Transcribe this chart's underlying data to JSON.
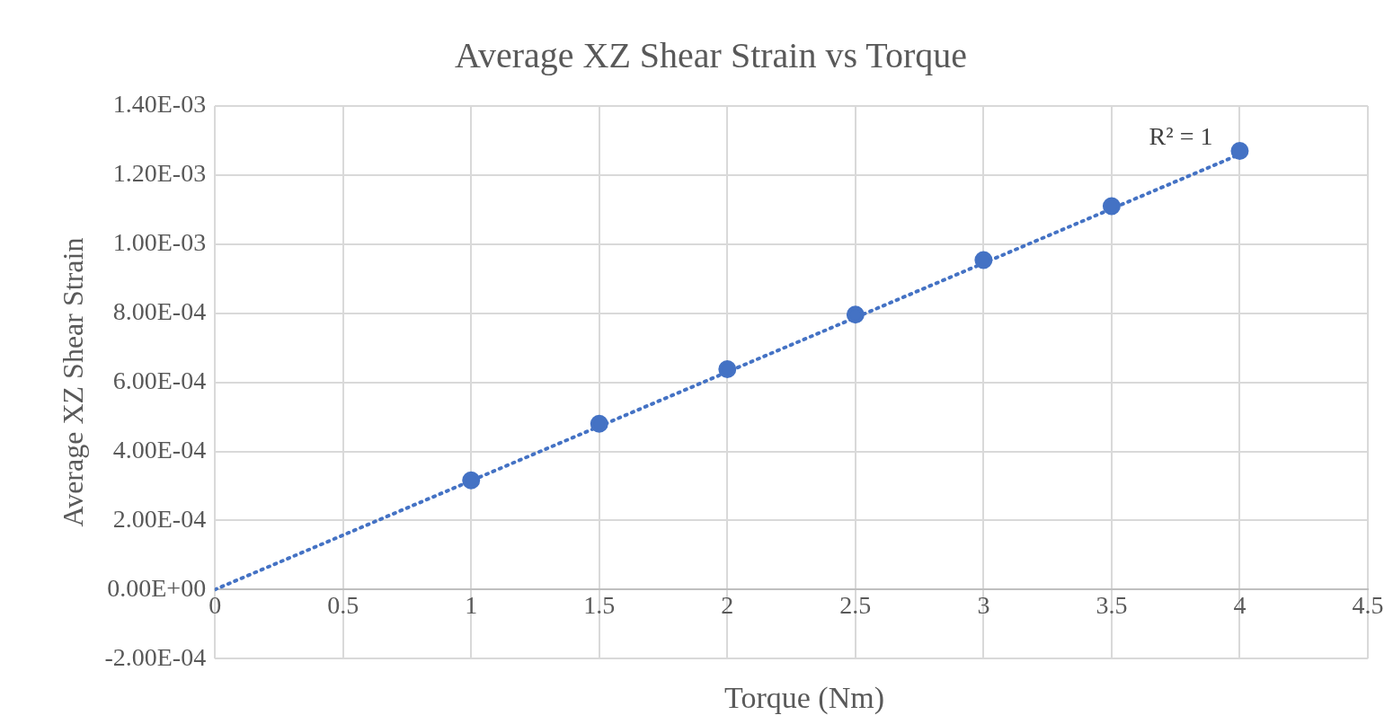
{
  "chart_data": {
    "type": "scatter",
    "title": "Average XZ Shear Strain vs Torque",
    "xlabel": "Torque (Nm)",
    "ylabel": "Average XZ Shear Strain",
    "annotations": [
      "R² = 1"
    ],
    "series": [
      {
        "type": "scatter",
        "color": "#4472c4",
        "marker": "circle",
        "x": [
          1,
          1.5,
          2,
          2.5,
          3,
          3.5,
          4
        ],
        "values": [
          0.000316,
          0.00048,
          0.000638,
          0.000796,
          0.000954,
          0.00111,
          0.00127
        ]
      },
      {
        "type": "line",
        "color": "#4472c4",
        "marker": "none",
        "line_style": "dotted",
        "x": [
          0,
          4
        ],
        "values": [
          0,
          0.00126
        ]
      }
    ],
    "xlim": [
      0,
      4.5
    ],
    "xticks": [
      0,
      0.5,
      1,
      1.5,
      2,
      2.5,
      3,
      3.5,
      4,
      4.5
    ],
    "ylim": [
      -0.0002,
      0.0014
    ],
    "yticks": [
      {
        "value": -0.0002,
        "label": "-2.00E-04"
      },
      {
        "value": 0,
        "label": "0.00E+00"
      },
      {
        "value": 0.0002,
        "label": "2.00E-04"
      },
      {
        "value": 0.0004,
        "label": "4.00E-04"
      },
      {
        "value": 0.0006,
        "label": "6.00E-04"
      },
      {
        "value": 0.0008,
        "label": "8.00E-04"
      },
      {
        "value": 0.001,
        "label": "1.00E-03"
      },
      {
        "value": 0.0012,
        "label": "1.20E-03"
      },
      {
        "value": 0.0014,
        "label": "1.40E-03"
      }
    ],
    "grid": true,
    "legend": false
  }
}
